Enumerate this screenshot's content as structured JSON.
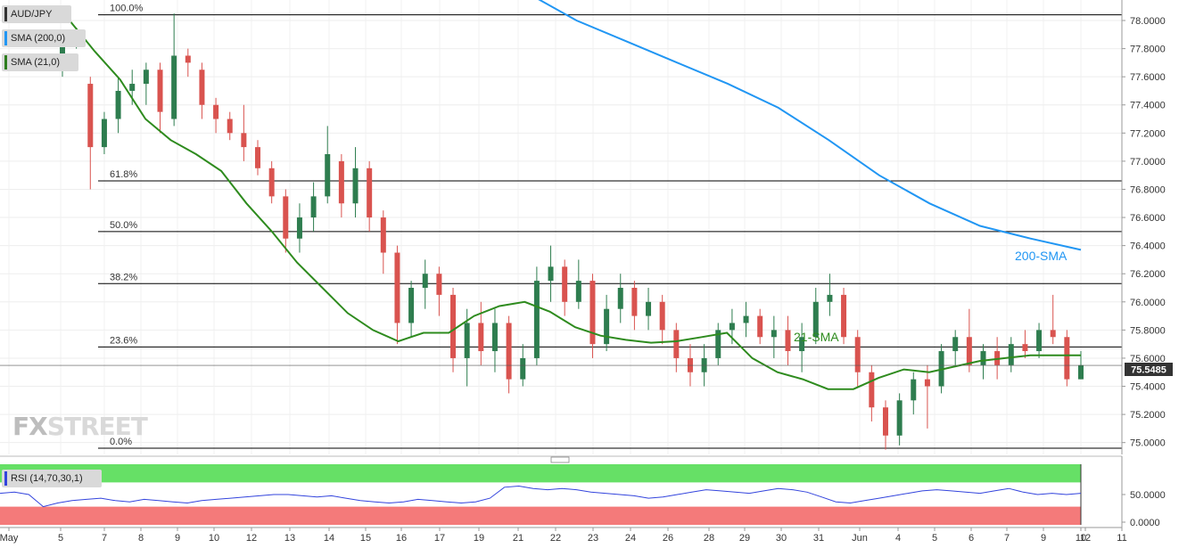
{
  "symbol": "AUD/JPY",
  "watermark": {
    "left": "FX",
    "right": "STREET"
  },
  "legend": [
    {
      "label": "SMA (200,0)",
      "color": "#2196f3"
    },
    {
      "label": "SMA (21,0)",
      "color": "#2e7d1e"
    }
  ],
  "rsi_label": "RSI (14,70,30,1)",
  "current_price": "75.5485",
  "colors": {
    "up": "#2e7d4f",
    "down": "#d9534f",
    "sma200": "#2196f3",
    "sma21": "#2e8b1e",
    "overbought": "#66e066",
    "oversold": "#f47a7a",
    "rsi": "#3344dd"
  },
  "chart_data": {
    "type": "candlestick",
    "series": [
      {
        "name": "AUD/JPY"
      }
    ],
    "y_ticks": [
      "78.0000",
      "77.8000",
      "77.6000",
      "77.4000",
      "77.2000",
      "77.0000",
      "76.8000",
      "76.6000",
      "76.4000",
      "76.2000",
      "76.0000",
      "75.8000",
      "75.6000",
      "75.4000",
      "75.2000",
      "75.0000"
    ],
    "ylim": [
      74.95,
      78.12
    ],
    "x_ticks": [
      "May",
      "5",
      "7",
      "8",
      "9",
      "10",
      "12",
      "13",
      "14",
      "15",
      "16",
      "17",
      "19",
      "21",
      "22",
      "23",
      "24",
      "26",
      "28",
      "29",
      "30",
      "31",
      "Jun",
      "4",
      "5",
      "6",
      "7",
      "9",
      "10",
      "11",
      "12"
    ],
    "fibonacci": [
      {
        "label": "100.0%",
        "value": 78.04
      },
      {
        "label": "61.8%",
        "value": 76.86
      },
      {
        "label": "50.0%",
        "value": 76.5
      },
      {
        "label": "38.2%",
        "value": 76.13
      },
      {
        "label": "23.6%",
        "value": 75.68
      },
      {
        "label": "0.0%",
        "value": 74.96
      }
    ],
    "annotations": [
      {
        "text": "200-SMA",
        "color": "#2196f3"
      },
      {
        "text": "21-SMA",
        "color": "#2e8b1e"
      }
    ],
    "sma200": [
      78.2,
      78.0,
      77.85,
      77.7,
      77.55,
      77.38,
      77.15,
      76.9,
      76.7,
      76.54,
      76.45,
      76.37
    ],
    "sma21": [
      78.0,
      77.78,
      77.58,
      77.3,
      77.15,
      77.05,
      76.93,
      76.7,
      76.5,
      76.28,
      76.1,
      75.92,
      75.8,
      75.72,
      75.78,
      75.78,
      75.9,
      75.97,
      76.0,
      75.93,
      75.82,
      75.76,
      75.73,
      75.71,
      75.72,
      75.75,
      75.78,
      75.6,
      75.5,
      75.45,
      75.38,
      75.38,
      75.46,
      75.52,
      75.5,
      75.54,
      75.58,
      75.6,
      75.62,
      75.62,
      75.62
    ],
    "candles": [
      [
        77.7,
        77.9,
        77.6,
        77.85
      ],
      [
        77.85,
        77.95,
        77.8,
        77.92
      ],
      [
        77.55,
        77.6,
        76.8,
        77.1
      ],
      [
        77.1,
        77.35,
        77.05,
        77.3
      ],
      [
        77.3,
        77.6,
        77.2,
        77.5
      ],
      [
        77.5,
        77.65,
        77.4,
        77.55
      ],
      [
        77.55,
        77.7,
        77.4,
        77.65
      ],
      [
        77.65,
        77.7,
        77.2,
        77.35
      ],
      [
        77.3,
        78.05,
        77.25,
        77.75
      ],
      [
        77.75,
        77.8,
        77.6,
        77.7
      ],
      [
        77.65,
        77.7,
        77.3,
        77.4
      ],
      [
        77.4,
        77.45,
        77.2,
        77.3
      ],
      [
        77.3,
        77.35,
        77.15,
        77.2
      ],
      [
        77.2,
        77.4,
        77.0,
        77.1
      ],
      [
        77.1,
        77.15,
        76.9,
        76.95
      ],
      [
        76.95,
        77.0,
        76.7,
        76.75
      ],
      [
        76.75,
        76.8,
        76.35,
        76.45
      ],
      [
        76.45,
        76.7,
        76.35,
        76.6
      ],
      [
        76.6,
        76.85,
        76.5,
        76.75
      ],
      [
        76.75,
        77.25,
        76.7,
        77.05
      ],
      [
        77.0,
        77.05,
        76.6,
        76.7
      ],
      [
        76.7,
        77.1,
        76.6,
        76.95
      ],
      [
        76.95,
        77.0,
        76.5,
        76.6
      ],
      [
        76.6,
        76.65,
        76.2,
        76.35
      ],
      [
        76.35,
        76.4,
        75.7,
        75.85
      ],
      [
        75.85,
        76.15,
        75.75,
        76.1
      ],
      [
        76.1,
        76.3,
        75.95,
        76.2
      ],
      [
        76.2,
        76.25,
        75.9,
        76.05
      ],
      [
        76.05,
        76.1,
        75.5,
        75.6
      ],
      [
        75.6,
        75.95,
        75.4,
        75.85
      ],
      [
        75.85,
        76.0,
        75.55,
        75.65
      ],
      [
        75.65,
        75.95,
        75.5,
        75.85
      ],
      [
        75.85,
        75.9,
        75.35,
        75.45
      ],
      [
        75.45,
        75.7,
        75.4,
        75.6
      ],
      [
        75.6,
        76.25,
        75.55,
        76.15
      ],
      [
        76.15,
        76.4,
        76.0,
        76.25
      ],
      [
        76.25,
        76.3,
        75.9,
        76.0
      ],
      [
        76.0,
        76.3,
        75.95,
        76.15
      ],
      [
        76.15,
        76.2,
        75.6,
        75.7
      ],
      [
        75.7,
        76.05,
        75.65,
        75.95
      ],
      [
        75.95,
        76.2,
        75.85,
        76.1
      ],
      [
        76.1,
        76.15,
        75.8,
        75.9
      ],
      [
        75.9,
        76.1,
        75.8,
        76.0
      ],
      [
        76.0,
        76.05,
        75.7,
        75.8
      ],
      [
        75.8,
        75.85,
        75.5,
        75.6
      ],
      [
        75.6,
        75.7,
        75.4,
        75.5
      ],
      [
        75.5,
        75.7,
        75.4,
        75.6
      ],
      [
        75.6,
        75.85,
        75.55,
        75.8
      ],
      [
        75.8,
        75.95,
        75.7,
        75.85
      ],
      [
        75.85,
        76.0,
        75.75,
        75.9
      ],
      [
        75.9,
        75.95,
        75.7,
        75.75
      ],
      [
        75.75,
        75.9,
        75.6,
        75.8
      ],
      [
        75.8,
        75.9,
        75.55,
        75.65
      ],
      [
        75.65,
        75.85,
        75.5,
        75.75
      ],
      [
        75.75,
        76.1,
        75.7,
        76.0
      ],
      [
        76.0,
        76.2,
        75.9,
        76.05
      ],
      [
        76.05,
        76.1,
        75.7,
        75.75
      ],
      [
        75.75,
        75.8,
        75.4,
        75.5
      ],
      [
        75.5,
        75.55,
        75.15,
        75.25
      ],
      [
        75.25,
        75.3,
        74.95,
        75.05
      ],
      [
        75.05,
        75.35,
        74.98,
        75.3
      ],
      [
        75.3,
        75.5,
        75.2,
        75.45
      ],
      [
        75.45,
        75.55,
        75.1,
        75.4
      ],
      [
        75.4,
        75.7,
        75.35,
        75.65
      ],
      [
        75.65,
        75.8,
        75.55,
        75.75
      ],
      [
        75.75,
        75.95,
        75.5,
        75.55
      ],
      [
        75.55,
        75.7,
        75.45,
        75.65
      ],
      [
        75.65,
        75.75,
        75.45,
        75.55
      ],
      [
        75.55,
        75.75,
        75.5,
        75.7
      ],
      [
        75.7,
        75.8,
        75.6,
        75.65
      ],
      [
        75.65,
        75.85,
        75.6,
        75.8
      ],
      [
        75.8,
        76.05,
        75.7,
        75.75
      ],
      [
        75.75,
        75.8,
        75.4,
        75.45
      ],
      [
        75.45,
        75.65,
        75.45,
        75.55
      ]
    ]
  },
  "rsi_data": {
    "y_ticks": [
      "50.0000",
      "0.0000"
    ],
    "levels": {
      "overbought": 70,
      "oversold": 30
    },
    "values": [
      52,
      54,
      50,
      30,
      36,
      40,
      42,
      44,
      40,
      38,
      42,
      40,
      38,
      36,
      40,
      42,
      44,
      46,
      48,
      50,
      50,
      48,
      46,
      48,
      44,
      40,
      38,
      36,
      38,
      42,
      40,
      38,
      36,
      38,
      44,
      62,
      64,
      60,
      58,
      60,
      58,
      54,
      52,
      50,
      48,
      44,
      46,
      50,
      54,
      58,
      56,
      54,
      52,
      56,
      60,
      58,
      54,
      46,
      38,
      36,
      40,
      44,
      48,
      52,
      56,
      58,
      56,
      54,
      52,
      56,
      60,
      54,
      50,
      52,
      50,
      52
    ]
  }
}
